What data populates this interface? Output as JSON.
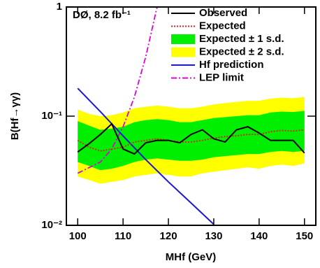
{
  "chart_data": {
    "type": "line",
    "annotation": "DØ, 8.2 fb⁻¹",
    "x_label": "MHf (GeV)",
    "y_label": "B(Hf→γγ)",
    "log_y": true,
    "legend": "top-right",
    "xlim": [
      97.5,
      152.5
    ],
    "xticks": [
      100,
      110,
      120,
      130,
      140,
      150
    ],
    "ylim": [
      0.01,
      1
    ],
    "yticks": [
      {
        "value": 0.01,
        "label": "10⁻²"
      },
      {
        "value": 0.1,
        "label": "10⁻¹"
      },
      1
    ],
    "x": [
      100,
      102.5,
      105,
      107.5,
      110,
      112.5,
      115,
      117.5,
      120,
      122.5,
      125,
      127.5,
      130,
      132.5,
      135,
      137.5,
      140,
      142.5,
      145,
      147.5,
      150
    ],
    "series": [
      {
        "name": "Observed",
        "color": "#000000",
        "style": "solid",
        "values": [
          0.047,
          0.056,
          0.068,
          0.085,
          0.05,
          0.045,
          0.057,
          0.06,
          0.06,
          0.057,
          0.068,
          0.075,
          0.062,
          0.058,
          0.075,
          0.08,
          0.07,
          0.06,
          0.06,
          0.06,
          0.046
        ]
      },
      {
        "name": "Expected",
        "color": "#dd2222",
        "style": "dotted",
        "values": [
          0.06,
          0.052,
          0.048,
          0.05,
          0.052,
          0.058,
          0.06,
          0.062,
          0.06,
          0.058,
          0.058,
          0.06,
          0.063,
          0.065,
          0.066,
          0.068,
          0.068,
          0.072,
          0.074,
          0.073,
          0.075
        ]
      },
      {
        "name": "Expected ± 1 s.d.",
        "color": "#00ee00",
        "style": "band",
        "low": [
          0.038,
          0.035,
          0.032,
          0.033,
          0.035,
          0.038,
          0.04,
          0.041,
          0.04,
          0.039,
          0.039,
          0.04,
          0.042,
          0.043,
          0.044,
          0.045,
          0.045,
          0.047,
          0.048,
          0.047,
          0.048
        ],
        "high": [
          0.09,
          0.082,
          0.075,
          0.077,
          0.08,
          0.088,
          0.092,
          0.094,
          0.092,
          0.088,
          0.088,
          0.092,
          0.096,
          0.098,
          0.1,
          0.102,
          0.102,
          0.108,
          0.11,
          0.109,
          0.112
        ]
      },
      {
        "name": "Expected ± 2 s.d.",
        "color": "#ffff00",
        "style": "band",
        "low": [
          0.028,
          0.026,
          0.024,
          0.025,
          0.026,
          0.028,
          0.029,
          0.03,
          0.029,
          0.028,
          0.028,
          0.03,
          0.031,
          0.032,
          0.033,
          0.034,
          0.033,
          0.035,
          0.036,
          0.035,
          0.037
        ],
        "high": [
          0.115,
          0.105,
          0.1,
          0.102,
          0.108,
          0.118,
          0.122,
          0.125,
          0.122,
          0.118,
          0.118,
          0.122,
          0.128,
          0.132,
          0.135,
          0.138,
          0.138,
          0.145,
          0.148,
          0.146,
          0.15
        ]
      },
      {
        "name": "Hf prediction",
        "color": "#1a1acc",
        "style": "solid",
        "x": [
          100,
          105,
          110,
          115,
          120,
          125,
          130
        ],
        "values": [
          0.18,
          0.11,
          0.066,
          0.04,
          0.025,
          0.016,
          0.0102
        ]
      },
      {
        "name": "LEP limit",
        "color": "#dd00dd",
        "style": "dashdot",
        "x": [
          100,
          105,
          107.5,
          110,
          112.5,
          115,
          117.5
        ],
        "values": [
          0.03,
          0.038,
          0.05,
          0.08,
          0.15,
          0.35,
          1.0
        ]
      }
    ]
  }
}
